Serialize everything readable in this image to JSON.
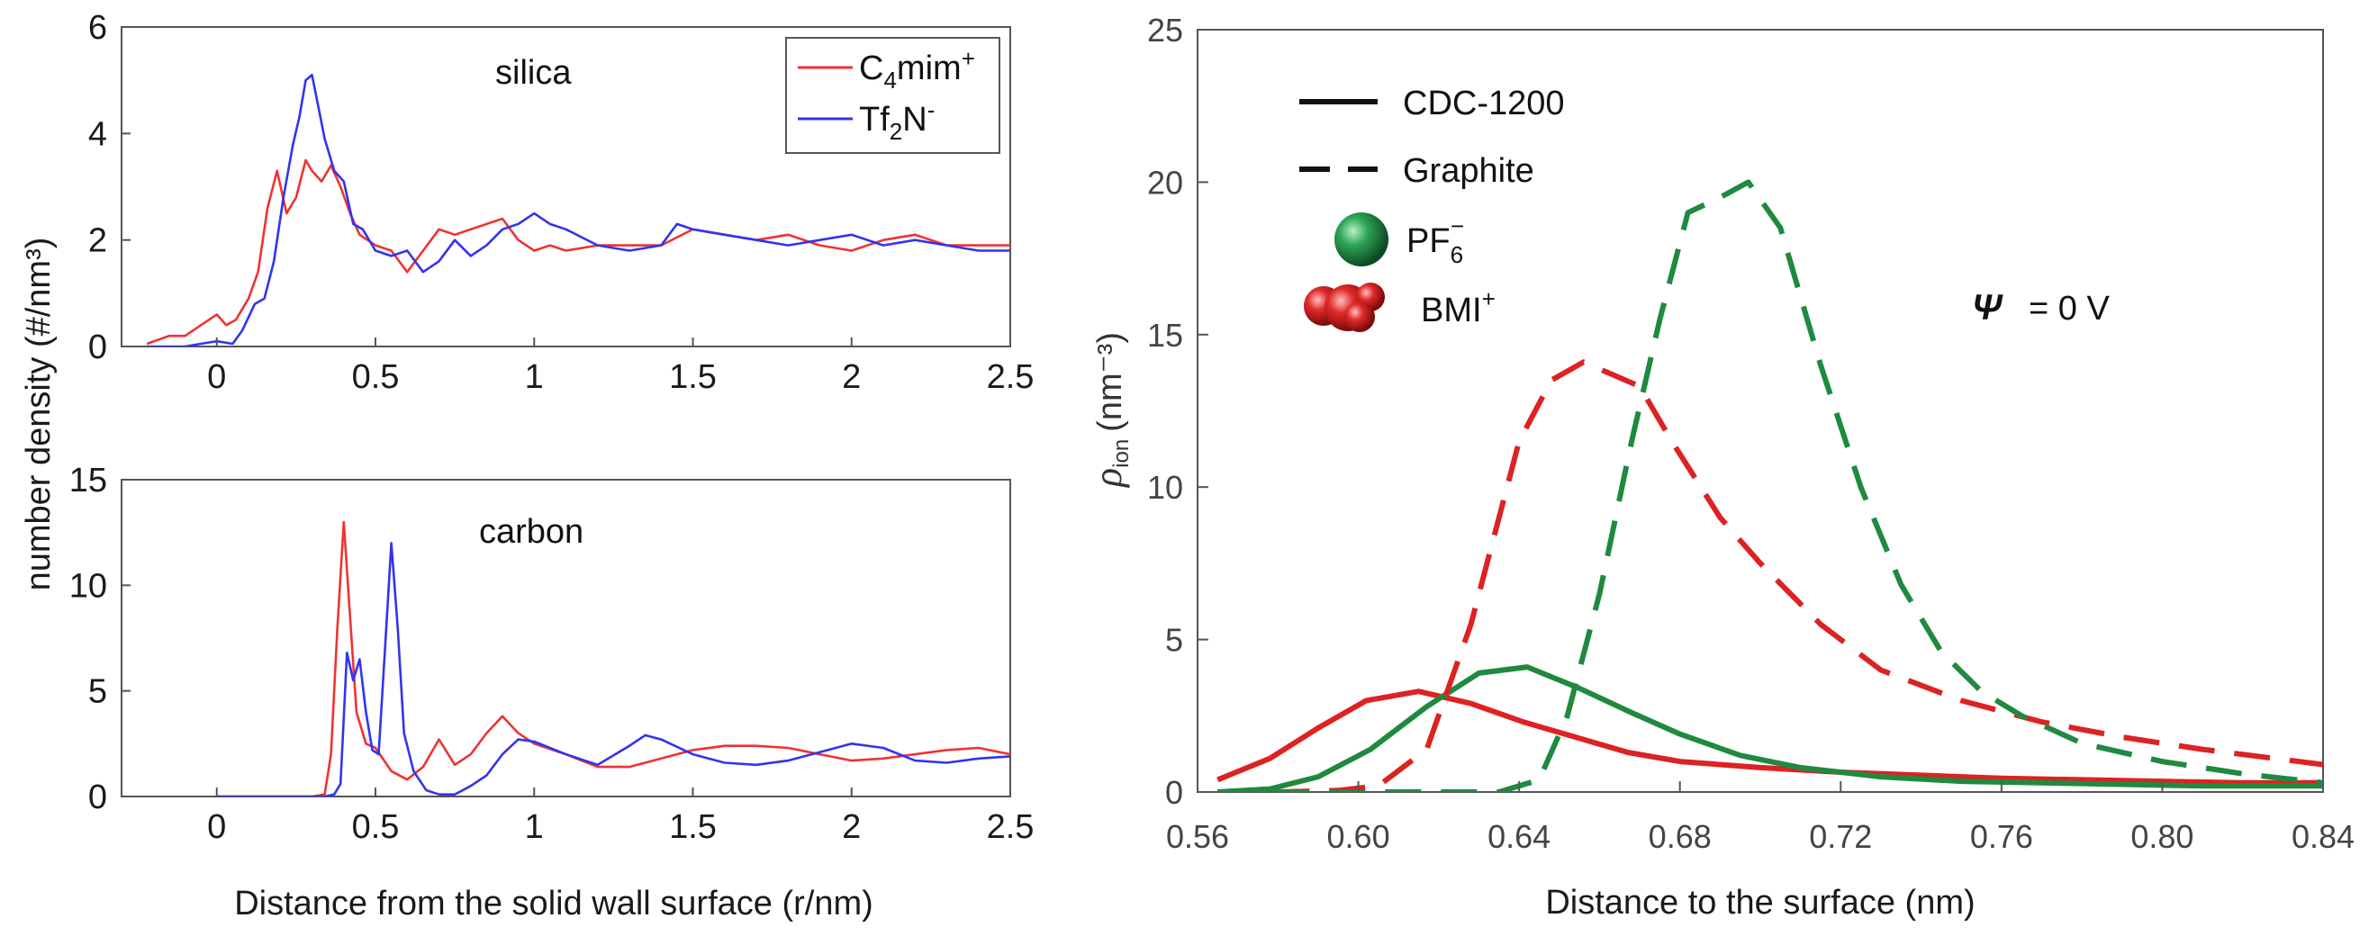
{
  "figure": {
    "xlabel_left": "Distance from the solid wall surface (r/nm)",
    "ylabel_left": "number density (#/nm³)",
    "xlabel_right": "Distance to the surface (nm)",
    "ylabel_right": "ρ",
    "ylabel_right_sub": "ion",
    "ylabel_right_unit": "(nm⁻³)",
    "psi_symbol": "Ψ",
    "psi_value": "= 0 V"
  },
  "legends": {
    "left": [
      {
        "name": "C4mim+",
        "base": "C",
        "sub": "4",
        "rest": "mim",
        "sup": "+",
        "color": "#ee3333"
      },
      {
        "name": "Tf2N-",
        "base": "Tf",
        "sub": "2",
        "rest": "N",
        "sup": "-",
        "color": "#3333ee"
      }
    ],
    "right_lines": [
      {
        "label": "CDC-1200",
        "style": "solid"
      },
      {
        "label": "Graphite",
        "style": "dashed"
      }
    ],
    "right_ions": [
      {
        "base": "PF",
        "sub": "6",
        "sup": "−",
        "color": "#1f8a3f"
      },
      {
        "base": "BMI",
        "sub": "",
        "sup": "+",
        "color": "#dd2222"
      }
    ]
  },
  "chart_data": [
    {
      "type": "line",
      "title": "silica",
      "xlabel": "Distance from the solid wall surface (r/nm)",
      "ylabel": "number density (#/nm³)",
      "xlim": [
        -0.3,
        2.5
      ],
      "ylim": [
        0,
        6
      ],
      "xticks": [
        "0",
        "0.5",
        "1",
        "1.5",
        "2",
        "2.5"
      ],
      "xtick_values": [
        0,
        0.5,
        1,
        1.5,
        2,
        2.5
      ],
      "yticks": [
        "0",
        "2",
        "4",
        "6"
      ],
      "ytick_values": [
        0,
        2,
        4,
        6
      ],
      "series": [
        {
          "name": "C4mim+",
          "color": "#ee3333",
          "x": [
            -0.22,
            -0.15,
            -0.1,
            -0.05,
            0,
            0.03,
            0.06,
            0.1,
            0.13,
            0.16,
            0.19,
            0.22,
            0.25,
            0.28,
            0.3,
            0.33,
            0.36,
            0.39,
            0.42,
            0.45,
            0.5,
            0.55,
            0.6,
            0.65,
            0.7,
            0.75,
            0.8,
            0.85,
            0.9,
            0.95,
            1.0,
            1.05,
            1.1,
            1.2,
            1.3,
            1.4,
            1.5,
            1.6,
            1.7,
            1.8,
            1.9,
            2.0,
            2.1,
            2.2,
            2.3,
            2.4,
            2.5
          ],
          "y": [
            0.05,
            0.2,
            0.2,
            0.4,
            0.6,
            0.4,
            0.5,
            0.9,
            1.4,
            2.6,
            3.3,
            2.5,
            2.8,
            3.5,
            3.3,
            3.1,
            3.4,
            3.0,
            2.5,
            2.1,
            1.9,
            1.8,
            1.4,
            1.8,
            2.2,
            2.1,
            2.2,
            2.3,
            2.4,
            2.0,
            1.8,
            1.9,
            1.8,
            1.9,
            1.9,
            1.9,
            2.2,
            2.1,
            2.0,
            2.1,
            1.9,
            1.8,
            2.0,
            2.1,
            1.9,
            1.9,
            1.9
          ]
        },
        {
          "name": "Tf2N-",
          "color": "#3333ee",
          "x": [
            -0.22,
            -0.15,
            -0.1,
            -0.05,
            0,
            0.05,
            0.08,
            0.12,
            0.15,
            0.18,
            0.21,
            0.24,
            0.26,
            0.28,
            0.3,
            0.32,
            0.34,
            0.37,
            0.4,
            0.43,
            0.46,
            0.5,
            0.55,
            0.6,
            0.65,
            0.7,
            0.75,
            0.8,
            0.85,
            0.9,
            0.95,
            1.0,
            1.05,
            1.1,
            1.2,
            1.3,
            1.4,
            1.45,
            1.5,
            1.6,
            1.7,
            1.8,
            1.9,
            2.0,
            2.1,
            2.2,
            2.3,
            2.4,
            2.5
          ],
          "y": [
            0,
            0,
            0,
            0.05,
            0.1,
            0.05,
            0.3,
            0.8,
            0.9,
            1.6,
            2.8,
            3.8,
            4.3,
            5.0,
            5.1,
            4.5,
            3.9,
            3.3,
            3.1,
            2.3,
            2.2,
            1.8,
            1.7,
            1.8,
            1.4,
            1.6,
            2.0,
            1.7,
            1.9,
            2.2,
            2.3,
            2.5,
            2.3,
            2.2,
            1.9,
            1.8,
            1.9,
            2.3,
            2.2,
            2.1,
            2.0,
            1.9,
            2.0,
            2.1,
            1.9,
            2.0,
            1.9,
            1.8,
            1.8
          ]
        }
      ]
    },
    {
      "type": "line",
      "title": "carbon",
      "xlabel": "Distance from the solid wall surface (r/nm)",
      "ylabel": "number density (#/nm³)",
      "xlim": [
        -0.3,
        2.5
      ],
      "ylim": [
        0,
        15
      ],
      "xticks": [
        "0",
        "0.5",
        "1",
        "1.5",
        "2",
        "2.5"
      ],
      "xtick_values": [
        0,
        0.5,
        1,
        1.5,
        2,
        2.5
      ],
      "yticks": [
        "0",
        "5",
        "10",
        "15"
      ],
      "ytick_values": [
        0,
        5,
        10,
        15
      ],
      "series": [
        {
          "name": "C4mim+",
          "color": "#ee3333",
          "x": [
            0.0,
            0.3,
            0.34,
            0.36,
            0.38,
            0.4,
            0.42,
            0.44,
            0.47,
            0.5,
            0.55,
            0.6,
            0.65,
            0.7,
            0.75,
            0.8,
            0.85,
            0.9,
            0.95,
            1.0,
            1.1,
            1.2,
            1.3,
            1.4,
            1.5,
            1.6,
            1.7,
            1.8,
            1.9,
            2.0,
            2.1,
            2.2,
            2.3,
            2.4,
            2.5
          ],
          "y": [
            0,
            0,
            0.1,
            2.0,
            8.0,
            13.0,
            8.5,
            4.0,
            2.5,
            2.3,
            1.2,
            0.8,
            1.4,
            2.7,
            1.5,
            2.0,
            3.0,
            3.8,
            3.0,
            2.5,
            2.0,
            1.4,
            1.4,
            1.8,
            2.2,
            2.4,
            2.4,
            2.3,
            2.0,
            1.7,
            1.8,
            2.0,
            2.2,
            2.3,
            2.0
          ]
        },
        {
          "name": "Tf2N-",
          "color": "#3333ee",
          "x": [
            0.0,
            0.34,
            0.37,
            0.39,
            0.41,
            0.43,
            0.45,
            0.47,
            0.49,
            0.51,
            0.53,
            0.55,
            0.57,
            0.59,
            0.62,
            0.66,
            0.7,
            0.75,
            0.8,
            0.85,
            0.9,
            0.95,
            1.0,
            1.1,
            1.2,
            1.3,
            1.35,
            1.4,
            1.5,
            1.6,
            1.7,
            1.8,
            1.9,
            2.0,
            2.1,
            2.2,
            2.3,
            2.4,
            2.5
          ],
          "y": [
            0,
            0,
            0.1,
            0.6,
            6.8,
            5.5,
            6.5,
            4.0,
            2.2,
            2.0,
            7.0,
            12.0,
            8.0,
            3.0,
            1.2,
            0.3,
            0.1,
            0.1,
            0.5,
            1.0,
            2.0,
            2.7,
            2.6,
            2.0,
            1.5,
            2.4,
            2.9,
            2.7,
            2.0,
            1.6,
            1.5,
            1.7,
            2.1,
            2.5,
            2.3,
            1.7,
            1.6,
            1.8,
            1.9
          ]
        }
      ]
    },
    {
      "type": "line",
      "title": "",
      "xlabel": "Distance to the surface (nm)",
      "ylabel": "ρ ion (nm⁻³)",
      "xlim": [
        0.56,
        0.84
      ],
      "ylim": [
        0,
        25
      ],
      "xticks": [
        "0.56",
        "0.60",
        "0.64",
        "0.68",
        "0.72",
        "0.76",
        "0.80",
        "0.84"
      ],
      "xtick_values": [
        0.56,
        0.6,
        0.64,
        0.68,
        0.72,
        0.76,
        0.8,
        0.84
      ],
      "yticks": [
        "0",
        "5",
        "10",
        "15",
        "20",
        "25"
      ],
      "ytick_values": [
        0,
        5,
        10,
        15,
        20,
        25
      ],
      "series": [
        {
          "name": "BMI+ CDC-1200",
          "color": "#dd2222",
          "dash": "solid",
          "x": [
            0.565,
            0.578,
            0.59,
            0.602,
            0.615,
            0.628,
            0.641,
            0.654,
            0.667,
            0.68,
            0.7,
            0.72,
            0.74,
            0.76,
            0.78,
            0.8,
            0.82,
            0.84
          ],
          "y": [
            0.4,
            1.1,
            2.1,
            3.0,
            3.3,
            2.9,
            2.3,
            1.8,
            1.3,
            1.0,
            0.8,
            0.65,
            0.55,
            0.45,
            0.4,
            0.35,
            0.3,
            0.3
          ]
        },
        {
          "name": "PF6- CDC-1200",
          "color": "#1f8a3f",
          "dash": "solid",
          "x": [
            0.565,
            0.578,
            0.59,
            0.603,
            0.617,
            0.63,
            0.642,
            0.655,
            0.668,
            0.68,
            0.695,
            0.71,
            0.73,
            0.75,
            0.77,
            0.79,
            0.81,
            0.84
          ],
          "y": [
            0.0,
            0.1,
            0.5,
            1.4,
            2.8,
            3.9,
            4.1,
            3.4,
            2.6,
            1.9,
            1.2,
            0.8,
            0.5,
            0.35,
            0.3,
            0.25,
            0.2,
            0.2
          ]
        },
        {
          "name": "BMI+ Graphite",
          "color": "#dd2222",
          "dash": "dashed",
          "x": [
            0.565,
            0.58,
            0.595,
            0.605,
            0.617,
            0.628,
            0.64,
            0.648,
            0.656,
            0.663,
            0.67,
            0.678,
            0.69,
            0.7,
            0.715,
            0.73,
            0.75,
            0.77,
            0.79,
            0.81,
            0.84
          ],
          "y": [
            0.0,
            0.0,
            0.05,
            0.2,
            1.4,
            5.5,
            11.5,
            13.5,
            14.1,
            13.7,
            13.3,
            11.5,
            9.0,
            7.5,
            5.5,
            4.0,
            3.0,
            2.3,
            1.8,
            1.4,
            0.9
          ]
        },
        {
          "name": "PF6- Graphite",
          "color": "#1f8a3f",
          "dash": "dashed",
          "x": [
            0.565,
            0.59,
            0.615,
            0.635,
            0.645,
            0.652,
            0.66,
            0.668,
            0.675,
            0.682,
            0.69,
            0.697,
            0.705,
            0.715,
            0.725,
            0.735,
            0.745,
            0.755,
            0.765,
            0.78,
            0.8,
            0.82,
            0.84
          ],
          "y": [
            0.0,
            0.0,
            0.0,
            0.0,
            0.4,
            2.5,
            6.5,
            11.5,
            15.5,
            19.0,
            19.5,
            20.0,
            18.5,
            14.0,
            10.0,
            6.8,
            4.6,
            3.3,
            2.5,
            1.6,
            1.0,
            0.6,
            0.3
          ]
        }
      ]
    }
  ]
}
